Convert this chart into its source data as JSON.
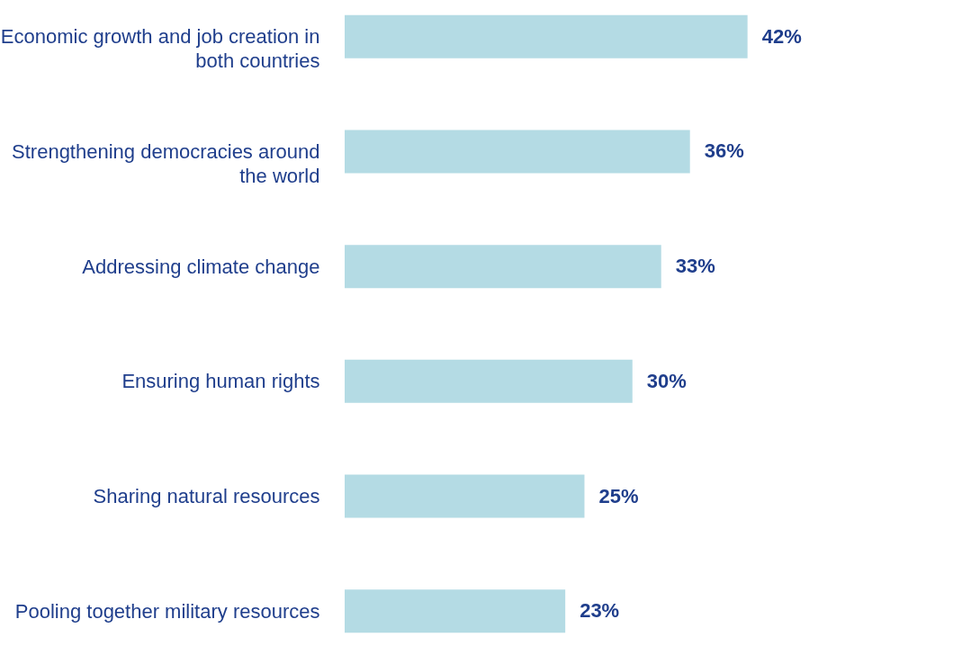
{
  "chart_data": {
    "type": "bar",
    "orientation": "horizontal",
    "categories": [
      "Economic growth and job creation in both countries",
      "Strengthening democracies around the world",
      "Addressing climate change",
      "Ensuring human rights",
      "Sharing natural resources",
      "Pooling together military resources"
    ],
    "values": [
      42,
      36,
      33,
      30,
      25,
      23
    ],
    "value_labels": [
      "42%",
      "36%",
      "33%",
      "30%",
      "25%",
      "23%"
    ],
    "color": "#b4dbe4"
  }
}
